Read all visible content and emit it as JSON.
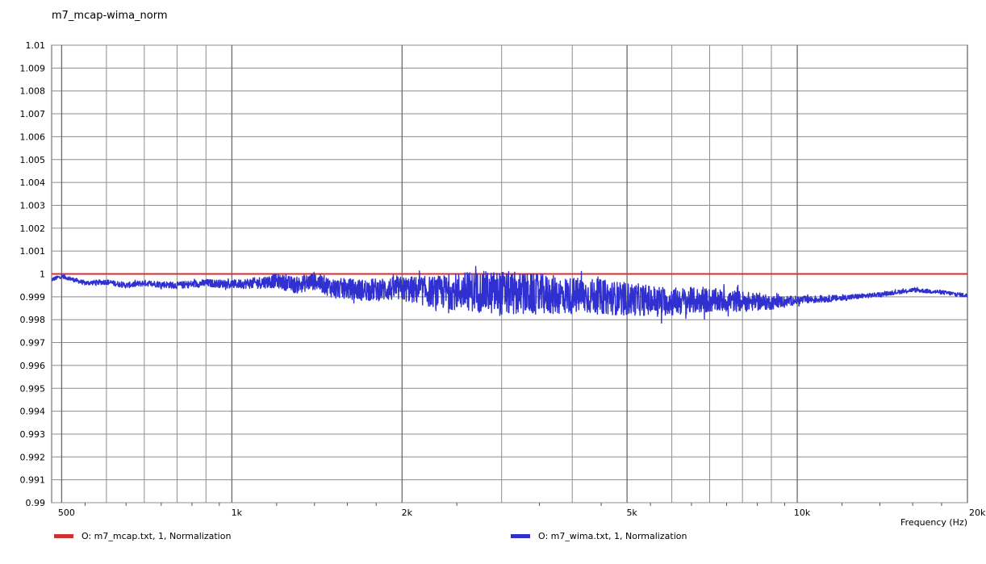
{
  "title": "m7_mcap-wima_norm",
  "chart_data": {
    "type": "line",
    "title": "m7_mcap-wima_norm",
    "xlabel": "Frequency  (Hz)",
    "ylabel": "",
    "xscale": "log",
    "xlim": [
      480,
      20000
    ],
    "ylim": [
      0.99,
      1.01
    ],
    "grid": true,
    "legend_position": "bottom",
    "y_ticks": [
      "1.01",
      "1.009",
      "1.008",
      "1.007",
      "1.006",
      "1.005",
      "1.004",
      "1.003",
      "1.002",
      "1.001",
      "1",
      "0.999",
      "0.998",
      "0.997",
      "0.996",
      "0.995",
      "0.994",
      "0.993",
      "0.992",
      "0.991",
      "0.99"
    ],
    "x_tick_labels": [
      {
        "value": 500,
        "label": "500"
      },
      {
        "value": 1000,
        "label": "1k"
      },
      {
        "value": 2000,
        "label": "2k"
      },
      {
        "value": 5000,
        "label": "5k"
      },
      {
        "value": 10000,
        "label": "10k"
      },
      {
        "value": 20000,
        "label": "20k"
      }
    ],
    "x_minor_grid": [
      600,
      700,
      800,
      900,
      3000,
      4000,
      6000,
      7000,
      8000,
      9000
    ],
    "series": [
      {
        "name": "O: m7_mcap.txt, 1, Normalization",
        "color": "#d03030",
        "x": [
          480,
          20000
        ],
        "y": [
          1.0,
          1.0
        ]
      },
      {
        "name": "O: m7_wima.txt, 1, Normalization",
        "color": "#3030d0",
        "x": [
          480,
          500,
          550,
          600,
          650,
          700,
          800,
          900,
          1000,
          1100,
          1200,
          1300,
          1400,
          1500,
          1700,
          2000,
          2300,
          2600,
          3000,
          3500,
          4000,
          4500,
          5000,
          6000,
          7000,
          8000,
          9000,
          10000,
          12000,
          14000,
          15000,
          16000,
          18000,
          20000
        ],
        "y": [
          0.99975,
          0.9999,
          0.9996,
          0.99965,
          0.9995,
          0.9996,
          0.9995,
          0.9996,
          0.99955,
          0.9996,
          0.9997,
          0.9995,
          0.9997,
          0.9994,
          0.9993,
          0.99935,
          0.9992,
          0.99925,
          0.99915,
          0.9991,
          0.99905,
          0.999,
          0.9989,
          0.9988,
          0.99885,
          0.9988,
          0.99875,
          0.99885,
          0.99895,
          0.9991,
          0.9992,
          0.9993,
          0.9992,
          0.99905
        ],
        "envelope": [
          {
            "x": 500,
            "amp": 0.0001
          },
          {
            "x": 1000,
            "amp": 0.0002
          },
          {
            "x": 1300,
            "amp": 0.0004
          },
          {
            "x": 2000,
            "amp": 0.0006
          },
          {
            "x": 2500,
            "amp": 0.0009
          },
          {
            "x": 3000,
            "amp": 0.0011
          },
          {
            "x": 4000,
            "amp": 0.0009
          },
          {
            "x": 5000,
            "amp": 0.0008
          },
          {
            "x": 6000,
            "amp": 0.0007
          },
          {
            "x": 8000,
            "amp": 0.0005
          },
          {
            "x": 10000,
            "amp": 0.0002
          },
          {
            "x": 14000,
            "amp": 0.0001
          },
          {
            "x": 20000,
            "amp": 0.0001
          }
        ]
      }
    ]
  }
}
